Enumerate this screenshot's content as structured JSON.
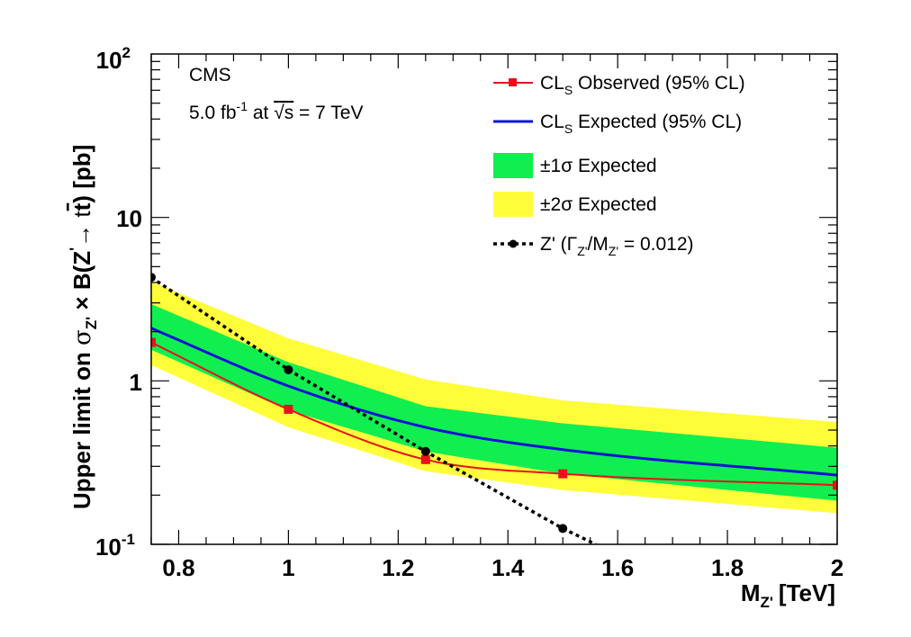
{
  "chart_data": {
    "type": "line",
    "xlabel": "M",
    "xlabel_sub": "Z'",
    "xlabel_unit": "[TeV]",
    "ylabel_parts": {
      "prefix": "Upper limit on ",
      "sigma": "σ",
      "sigma_sub": "Z'",
      "mid": " × B(Z",
      "prime_sup": "'",
      "arrow": "→ t",
      "tbar": "t",
      "suffix": ") [pb]"
    },
    "xlim": [
      0.75,
      2.0
    ],
    "ylim": [
      0.1,
      100
    ],
    "yscale": "log",
    "x_ticks": [
      {
        "value": 0.8,
        "label": "0.8"
      },
      {
        "value": 1.0,
        "label": "1"
      },
      {
        "value": 1.2,
        "label": "1.2"
      },
      {
        "value": 1.4,
        "label": "1.4"
      },
      {
        "value": 1.6,
        "label": "1.6"
      },
      {
        "value": 1.8,
        "label": "1.8"
      },
      {
        "value": 2.0,
        "label": "2"
      }
    ],
    "y_ticks": [
      {
        "value": 0.1,
        "base": "10",
        "exp": "-1"
      },
      {
        "value": 1,
        "base": "1",
        "exp": ""
      },
      {
        "value": 10,
        "base": "10",
        "exp": ""
      },
      {
        "value": 100,
        "base": "10",
        "exp": "2"
      }
    ],
    "annotations": {
      "experiment": "CMS",
      "lumi_value": "5.0 fb",
      "lumi_exp": "-1",
      "lumi_at": " at ",
      "sqrt_s": "√s",
      "energy": " = 7 TeV"
    },
    "legend": {
      "placement": "top-right",
      "observed": {
        "main": "CL",
        "sub": "S",
        "rest": " Observed (95% CL)"
      },
      "expected": {
        "main": "CL",
        "sub": "S",
        "rest": " Expected (95% CL)"
      },
      "band1": {
        "text": "±1σ Expected"
      },
      "band2": {
        "text": "±2σ Expected"
      },
      "zprime": {
        "pre": "Z' (Γ",
        "sub1": "Z'",
        "mid": "/M",
        "sub2": "Z'",
        "post": " = 0.012)"
      }
    },
    "colors": {
      "observed": "#e8121c",
      "expected": "#1313d6",
      "band1": "#11ee50",
      "band2": "#fffd3a",
      "theory": "#000000"
    },
    "x_points": [
      0.75,
      1.0,
      1.25,
      1.5,
      2.0
    ],
    "series": [
      {
        "name": "CL_S Observed (95% CL)",
        "role": "observed",
        "x": [
          0.75,
          1.0,
          1.25,
          1.5,
          2.0
        ],
        "y": [
          1.72,
          0.67,
          0.33,
          0.27,
          0.23
        ]
      },
      {
        "name": "CL_S Expected (95% CL)",
        "role": "expected",
        "x": [
          0.75,
          1.0,
          1.25,
          1.5,
          2.0
        ],
        "y": [
          2.1,
          0.93,
          0.52,
          0.38,
          0.265
        ]
      },
      {
        "name": "±1σ Expected",
        "role": "band1",
        "x": [
          0.75,
          1.0,
          1.25,
          1.5,
          2.0
        ],
        "low": [
          1.55,
          0.66,
          0.37,
          0.27,
          0.185
        ],
        "high": [
          2.95,
          1.3,
          0.7,
          0.55,
          0.39
        ]
      },
      {
        "name": "±2σ Expected",
        "role": "band2",
        "x": [
          0.75,
          1.0,
          1.25,
          1.5,
          2.0
        ],
        "low": [
          1.25,
          0.52,
          0.28,
          0.215,
          0.155
        ],
        "high": [
          4.05,
          1.82,
          1.02,
          0.76,
          0.56
        ]
      },
      {
        "name": "Z' (Γ_Z'/M_Z' = 0.012)",
        "role": "theory",
        "x": [
          0.75,
          1.0,
          1.25,
          1.5,
          1.56
        ],
        "y": [
          4.3,
          1.17,
          0.37,
          0.125,
          0.1
        ],
        "marker_count": 4
      }
    ]
  }
}
